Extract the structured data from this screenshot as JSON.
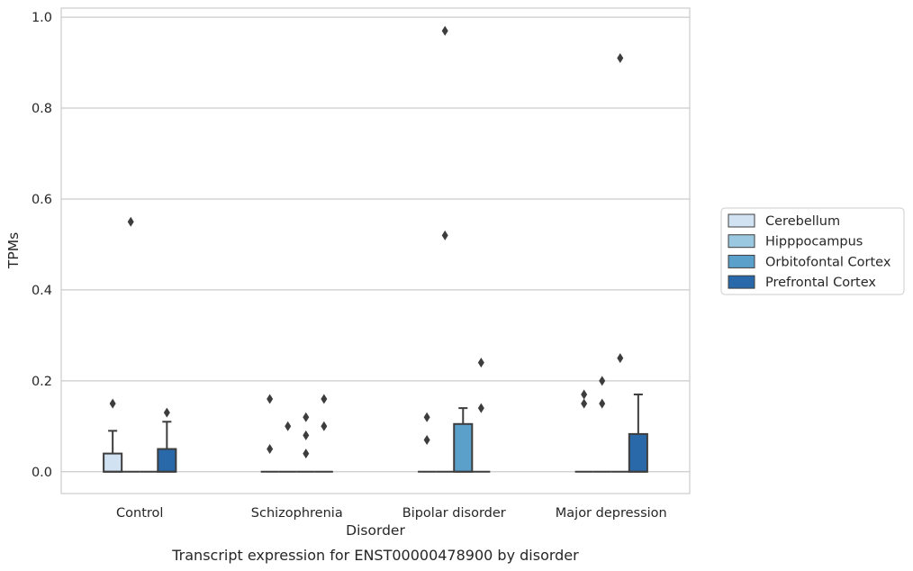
{
  "chart_data": {
    "type": "box",
    "xlabel": "Disorder",
    "ylabel": "TPMs",
    "caption": "Transcript expression for ENST00000478900 by disorder",
    "categories": [
      "Control",
      "Schizophrenia",
      "Bipolar disorder",
      "Major depression"
    ],
    "ylim": [
      -0.048,
      1.02
    ],
    "yticks": [
      0.0,
      0.2,
      0.4,
      0.6,
      0.8,
      1.0
    ],
    "ytick_labels": [
      "0.0",
      "0.2",
      "0.4",
      "0.6",
      "0.8",
      "1.0"
    ],
    "grid": true,
    "legend_position": "right",
    "series": [
      {
        "name": "Cerebellum",
        "color": "#d1e2f2",
        "boxes": [
          {
            "q1": 0.0,
            "median": 0.0,
            "q3": 0.04,
            "whisker_low": 0.0,
            "whisker_high": 0.09,
            "outliers": [
              0.15
            ]
          },
          {
            "q1": 0.0,
            "median": 0.0,
            "q3": 0.0,
            "whisker_low": 0.0,
            "whisker_high": 0.0,
            "outliers": [
              0.05,
              0.16
            ]
          },
          {
            "q1": 0.0,
            "median": 0.0,
            "q3": 0.0,
            "whisker_low": 0.0,
            "whisker_high": 0.0,
            "outliers": [
              0.07,
              0.12
            ]
          },
          {
            "q1": 0.0,
            "median": 0.0,
            "q3": 0.0,
            "whisker_low": 0.0,
            "whisker_high": 0.0,
            "outliers": [
              0.15,
              0.17
            ]
          }
        ]
      },
      {
        "name": "Hipppocampus",
        "color": "#9ac8e0",
        "boxes": [
          {
            "q1": 0.0,
            "median": 0.0,
            "q3": 0.0,
            "whisker_low": 0.0,
            "whisker_high": 0.0,
            "outliers": [
              0.55
            ]
          },
          {
            "q1": 0.0,
            "median": 0.0,
            "q3": 0.0,
            "whisker_low": 0.0,
            "whisker_high": 0.0,
            "outliers": [
              0.1
            ]
          },
          {
            "q1": 0.0,
            "median": 0.0,
            "q3": 0.0,
            "whisker_low": 0.0,
            "whisker_high": 0.0,
            "outliers": [
              0.52,
              0.97
            ]
          },
          {
            "q1": 0.0,
            "median": 0.0,
            "q3": 0.0,
            "whisker_low": 0.0,
            "whisker_high": 0.0,
            "outliers": [
              0.15,
              0.2
            ]
          }
        ]
      },
      {
        "name": "Orbitofontal Cortex",
        "color": "#5b9fcb",
        "boxes": [
          {
            "q1": 0.0,
            "median": 0.0,
            "q3": 0.0,
            "whisker_low": 0.0,
            "whisker_high": 0.0,
            "outliers": []
          },
          {
            "q1": 0.0,
            "median": 0.0,
            "q3": 0.0,
            "whisker_low": 0.0,
            "whisker_high": 0.0,
            "outliers": [
              0.04,
              0.08,
              0.12
            ]
          },
          {
            "q1": 0.0,
            "median": 0.0,
            "q3": 0.105,
            "whisker_low": 0.0,
            "whisker_high": 0.14,
            "outliers": []
          },
          {
            "q1": 0.0,
            "median": 0.0,
            "q3": 0.0,
            "whisker_low": 0.0,
            "whisker_high": 0.0,
            "outliers": [
              0.25,
              0.91
            ]
          }
        ]
      },
      {
        "name": "Prefrontal Cortex",
        "color": "#2a69a9",
        "boxes": [
          {
            "q1": 0.0,
            "median": 0.0,
            "q3": 0.05,
            "whisker_low": 0.0,
            "whisker_high": 0.11,
            "outliers": [
              0.13
            ]
          },
          {
            "q1": 0.0,
            "median": 0.0,
            "q3": 0.0,
            "whisker_low": 0.0,
            "whisker_high": 0.0,
            "outliers": [
              0.1,
              0.16
            ]
          },
          {
            "q1": 0.0,
            "median": 0.0,
            "q3": 0.0,
            "whisker_low": 0.0,
            "whisker_high": 0.0,
            "outliers": [
              0.14,
              0.24
            ]
          },
          {
            "q1": 0.0,
            "median": 0.0,
            "q3": 0.083,
            "whisker_low": 0.0,
            "whisker_high": 0.17,
            "outliers": []
          }
        ]
      }
    ]
  }
}
